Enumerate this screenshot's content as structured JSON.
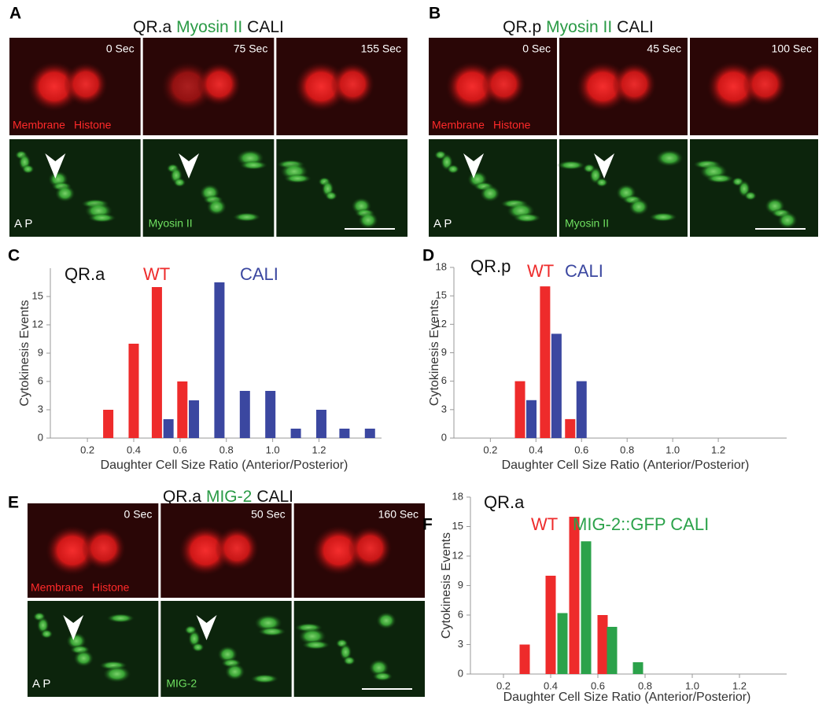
{
  "figure_panels": [
    {
      "letter": "A",
      "title": [
        "QR.a",
        "Myosin II",
        "CALI"
      ],
      "times": [
        "0 Sec",
        "75 Sec",
        "155 Sec"
      ],
      "labels": {
        "membrane": "Membrane",
        "histone": "Histone",
        "orientation": "A P",
        "marker": "Myosin II"
      }
    },
    {
      "letter": "B",
      "title": [
        "QR.p",
        "Myosin II",
        "CALI"
      ],
      "times": [
        "0 Sec",
        "45 Sec",
        "100 Sec"
      ],
      "labels": {
        "membrane": "Membrane",
        "histone": "Histone",
        "orientation": "A P",
        "marker": "Myosin II"
      }
    },
    {
      "letter": "E",
      "title": [
        "QR.a",
        "MIG-2",
        "CALI"
      ],
      "times": [
        "0 Sec",
        "50 Sec",
        "160 Sec"
      ],
      "labels": {
        "membrane": "Membrane",
        "histone": "Histone",
        "orientation": "A P",
        "marker": "MIG-2"
      }
    }
  ],
  "chart_data": [
    {
      "type": "bar",
      "panel": "C",
      "label": "QR.a",
      "x_label": "Daughter Cell Size Ratio (Anterior/Posterior)",
      "y_label": "Cytokinesis Events",
      "xlim": [
        0.04,
        1.47
      ],
      "xticks": [
        0.2,
        0.4,
        0.6,
        0.8,
        {
          "value": 1,
          "label": "1.0"
        },
        1.2
      ],
      "ylim": [
        0,
        18
      ],
      "yticks": [
        0,
        3,
        6,
        9,
        12,
        15
      ],
      "series": [
        {
          "name": "WT",
          "color": "#ee2b2b",
          "x": [
            0.29,
            0.4,
            0.5,
            0.61
          ],
          "values": [
            3,
            10,
            16,
            6
          ]
        },
        {
          "name": "CALI",
          "color": "#3b47a0",
          "x": [
            0.55,
            0.66,
            0.77,
            0.88,
            0.99,
            1.1,
            1.21,
            1.31,
            1.42
          ],
          "values": [
            2,
            4,
            16.5,
            5,
            5,
            1,
            3,
            1,
            1
          ]
        }
      ]
    },
    {
      "type": "bar",
      "panel": "D",
      "label": "QR.p",
      "x_label": "Daughter Cell Size Ratio (Anterior/Posterior)",
      "y_label": "Cytokinesis Events",
      "xlim": [
        0.04,
        1.5
      ],
      "xticks": [
        0.2,
        0.4,
        0.6,
        0.8,
        {
          "value": 1,
          "label": "1.0"
        },
        1.2
      ],
      "ylim": [
        0,
        18
      ],
      "yticks": [
        0,
        3,
        6,
        9,
        12,
        15,
        18
      ],
      "series": [
        {
          "name": "WT",
          "color": "#ee2b2b",
          "x": [
            0.33,
            0.44,
            0.55
          ],
          "values": [
            6,
            16,
            2
          ]
        },
        {
          "name": "CALI",
          "color": "#3b47a0",
          "x": [
            0.38,
            0.49,
            0.6
          ],
          "values": [
            4,
            11,
            6
          ]
        }
      ]
    },
    {
      "type": "bar",
      "panel": "F",
      "label": "QR.a",
      "x_label": "Daughter Cell Size Ratio (Anterior/Posterior)",
      "y_label": "Cytokinesis Events",
      "xlim": [
        0.06,
        1.4
      ],
      "xticks": [
        0.2,
        0.4,
        0.6,
        0.8,
        {
          "value": 1,
          "label": "1.0"
        },
        1.2
      ],
      "ylim": [
        0,
        18
      ],
      "yticks": [
        0,
        3,
        6,
        9,
        12,
        15,
        18
      ],
      "series": [
        {
          "name": "WT",
          "color": "#ee2b2b",
          "x": [
            0.29,
            0.4,
            0.5,
            0.62
          ],
          "values": [
            3,
            10,
            16,
            6
          ]
        },
        {
          "name": "MIG-2::GFP CALI",
          "color": "#2ba24a",
          "x": [
            0.45,
            0.55,
            0.66,
            0.77
          ],
          "values": [
            6.2,
            13.5,
            4.8,
            1.2
          ]
        }
      ]
    }
  ]
}
